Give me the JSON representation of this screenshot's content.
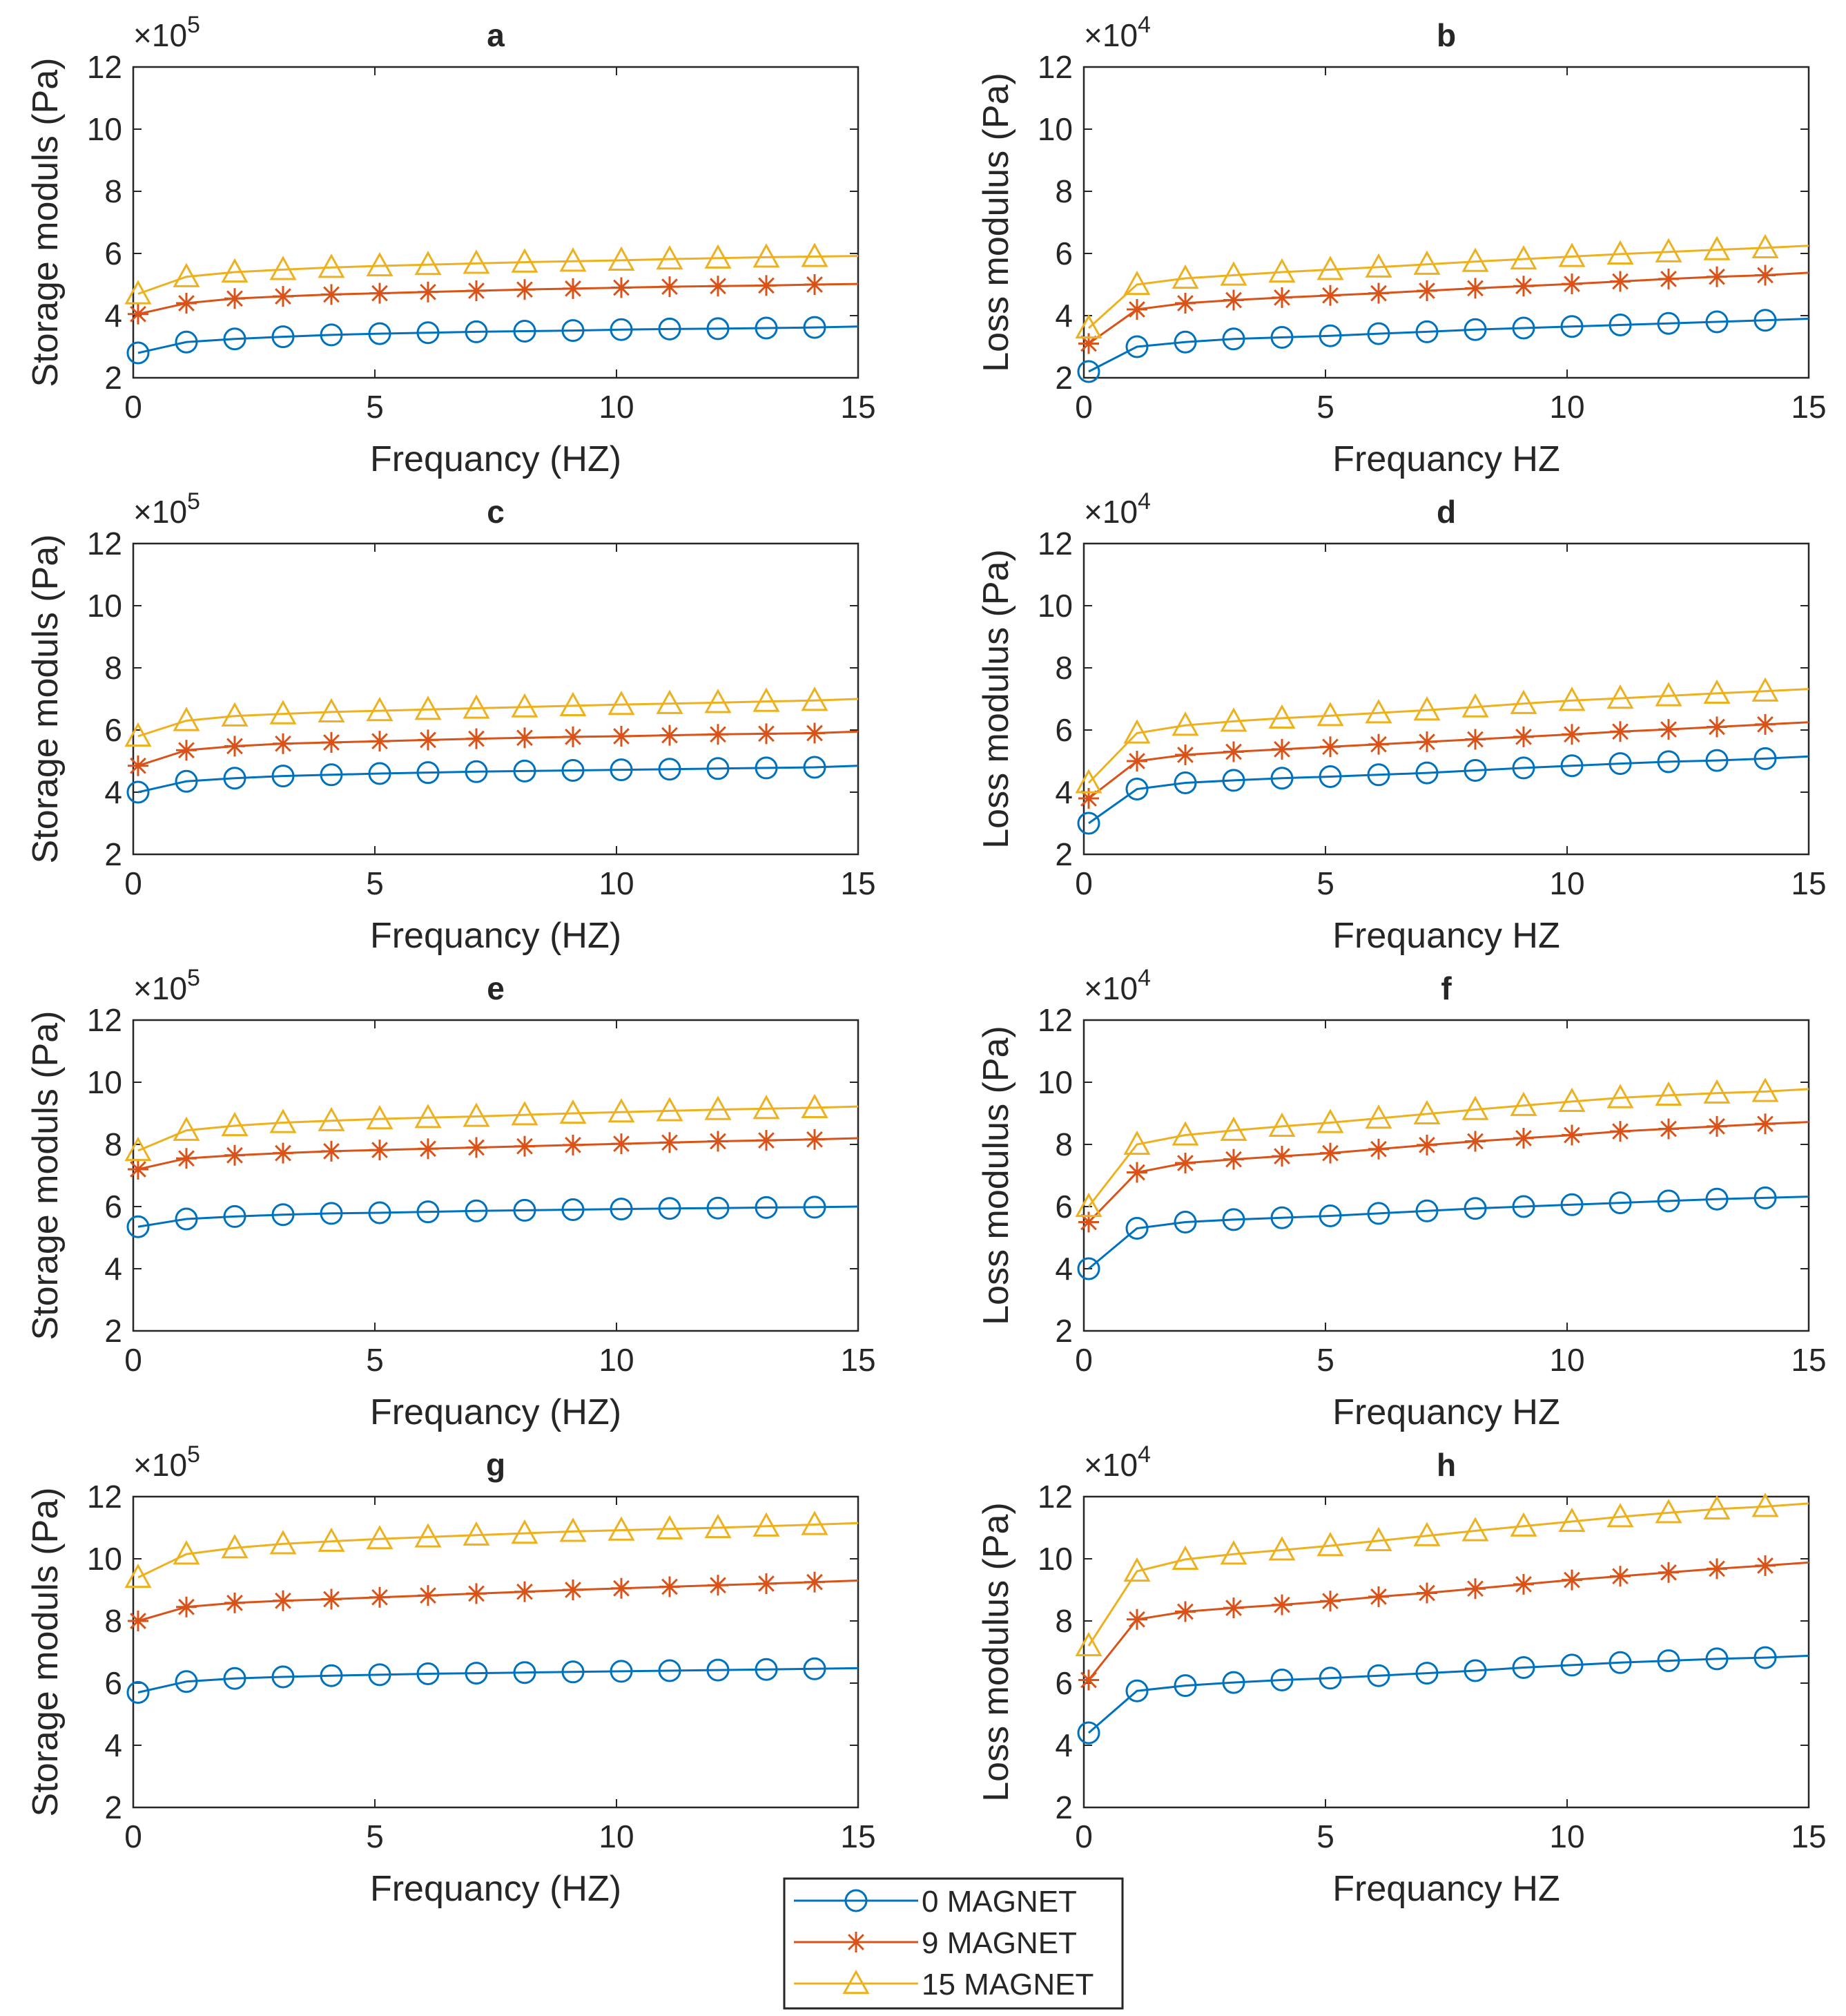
{
  "chart_data": {
    "type": "line",
    "panels": [
      {
        "id": "a",
        "title": "a",
        "xlabel": "Frequancy (HZ)",
        "ylabel": "Storage moduls (Pa)",
        "y_multiplier": "×10",
        "y_exponent": "5",
        "xlim": [
          0,
          15
        ],
        "ylim": [
          2,
          12
        ],
        "xticks": [
          "0",
          "5",
          "10",
          "15"
        ],
        "yticks": [
          "2",
          "4",
          "6",
          "8",
          "10",
          "12"
        ],
        "x": [
          0.1,
          1.1,
          2.1,
          3.1,
          4.1,
          5.1,
          6.1,
          7.1,
          8.1,
          9.1,
          10.1,
          11.1,
          12.1,
          13.1,
          14.1,
          15
        ],
        "series": [
          {
            "name": "0 MAGNET",
            "values": [
              2.8,
              3.15,
              3.25,
              3.32,
              3.38,
              3.42,
              3.45,
              3.48,
              3.5,
              3.52,
              3.55,
              3.57,
              3.58,
              3.6,
              3.62,
              3.65
            ]
          },
          {
            "name": "9 MAGNET",
            "values": [
              4.05,
              4.4,
              4.55,
              4.62,
              4.68,
              4.72,
              4.76,
              4.8,
              4.84,
              4.87,
              4.9,
              4.93,
              4.95,
              4.97,
              5.0,
              5.02
            ]
          },
          {
            "name": "15 MAGNET",
            "values": [
              4.7,
              5.25,
              5.4,
              5.48,
              5.55,
              5.6,
              5.64,
              5.68,
              5.72,
              5.75,
              5.78,
              5.82,
              5.85,
              5.88,
              5.9,
              5.92
            ]
          }
        ]
      },
      {
        "id": "b",
        "title": "b",
        "xlabel": "Frequancy HZ",
        "ylabel": "Loss modulus (Pa)",
        "y_multiplier": "×10",
        "y_exponent": "4",
        "xlim": [
          0,
          15
        ],
        "ylim": [
          2,
          12
        ],
        "xticks": [
          "0",
          "5",
          "10",
          "15"
        ],
        "yticks": [
          "2",
          "4",
          "6",
          "8",
          "10",
          "12"
        ],
        "x": [
          0.1,
          1.1,
          2.1,
          3.1,
          4.1,
          5.1,
          6.1,
          7.1,
          8.1,
          9.1,
          10.1,
          11.1,
          12.1,
          13.1,
          14.1,
          15
        ],
        "series": [
          {
            "name": "0 MAGNET",
            "values": [
              2.2,
              3.0,
              3.15,
              3.25,
              3.3,
              3.35,
              3.42,
              3.48,
              3.55,
              3.6,
              3.65,
              3.7,
              3.75,
              3.8,
              3.85,
              3.9
            ]
          },
          {
            "name": "9 MAGNET",
            "values": [
              3.1,
              4.2,
              4.4,
              4.5,
              4.58,
              4.65,
              4.72,
              4.8,
              4.88,
              4.95,
              5.02,
              5.1,
              5.18,
              5.25,
              5.3,
              5.38
            ]
          },
          {
            "name": "15 MAGNET",
            "values": [
              3.6,
              5.0,
              5.2,
              5.3,
              5.4,
              5.48,
              5.56,
              5.65,
              5.74,
              5.82,
              5.9,
              5.98,
              6.05,
              6.12,
              6.18,
              6.25
            ]
          }
        ]
      },
      {
        "id": "c",
        "title": "c",
        "xlabel": "Frequancy (HZ)",
        "ylabel": "Storage moduls (Pa)",
        "y_multiplier": "×10",
        "y_exponent": "5",
        "xlim": [
          0,
          15
        ],
        "ylim": [
          2,
          12
        ],
        "xticks": [
          "0",
          "5",
          "10",
          "15"
        ],
        "yticks": [
          "2",
          "4",
          "6",
          "8",
          "10",
          "12"
        ],
        "x": [
          0.1,
          1.1,
          2.1,
          3.1,
          4.1,
          5.1,
          6.1,
          7.1,
          8.1,
          9.1,
          10.1,
          11.1,
          12.1,
          13.1,
          14.1,
          15
        ],
        "series": [
          {
            "name": "0 MAGNET",
            "values": [
              4.0,
              4.35,
              4.45,
              4.52,
              4.56,
              4.6,
              4.63,
              4.66,
              4.68,
              4.7,
              4.72,
              4.74,
              4.76,
              4.78,
              4.8,
              4.85
            ]
          },
          {
            "name": "9 MAGNET",
            "values": [
              4.85,
              5.35,
              5.48,
              5.56,
              5.6,
              5.64,
              5.68,
              5.72,
              5.75,
              5.78,
              5.8,
              5.83,
              5.86,
              5.88,
              5.9,
              5.95
            ]
          },
          {
            "name": "15 MAGNET",
            "values": [
              5.8,
              6.3,
              6.45,
              6.52,
              6.58,
              6.62,
              6.66,
              6.7,
              6.74,
              6.78,
              6.82,
              6.85,
              6.88,
              6.92,
              6.95,
              7.0
            ]
          }
        ]
      },
      {
        "id": "d",
        "title": "d",
        "xlabel": "Frequancy HZ",
        "ylabel": "Loss modulus (Pa)",
        "y_multiplier": "×10",
        "y_exponent": "4",
        "xlim": [
          0,
          15
        ],
        "ylim": [
          2,
          12
        ],
        "xticks": [
          "0",
          "5",
          "10",
          "15"
        ],
        "yticks": [
          "2",
          "4",
          "6",
          "8",
          "10",
          "12"
        ],
        "x": [
          0.1,
          1.1,
          2.1,
          3.1,
          4.1,
          5.1,
          6.1,
          7.1,
          8.1,
          9.1,
          10.1,
          11.1,
          12.1,
          13.1,
          14.1,
          15
        ],
        "series": [
          {
            "name": "0 MAGNET",
            "values": [
              3.0,
              4.1,
              4.3,
              4.38,
              4.45,
              4.5,
              4.56,
              4.62,
              4.7,
              4.78,
              4.85,
              4.92,
              4.98,
              5.02,
              5.08,
              5.15
            ]
          },
          {
            "name": "9 MAGNET",
            "values": [
              3.8,
              5.0,
              5.2,
              5.3,
              5.38,
              5.46,
              5.54,
              5.62,
              5.7,
              5.78,
              5.86,
              5.95,
              6.02,
              6.1,
              6.18,
              6.25
            ]
          },
          {
            "name": "15 MAGNET",
            "values": [
              4.3,
              5.9,
              6.15,
              6.28,
              6.38,
              6.46,
              6.55,
              6.64,
              6.74,
              6.85,
              6.95,
              7.02,
              7.1,
              7.18,
              7.25,
              7.32
            ]
          }
        ]
      },
      {
        "id": "e",
        "title": "e",
        "xlabel": "Frequancy (HZ)",
        "ylabel": "Storage moduls (Pa)",
        "y_multiplier": "×10",
        "y_exponent": "5",
        "xlim": [
          0,
          15
        ],
        "ylim": [
          2,
          12
        ],
        "xticks": [
          "0",
          "5",
          "10",
          "15"
        ],
        "yticks": [
          "2",
          "4",
          "6",
          "8",
          "10",
          "12"
        ],
        "x": [
          0.1,
          1.1,
          2.1,
          3.1,
          4.1,
          5.1,
          6.1,
          7.1,
          8.1,
          9.1,
          10.1,
          11.1,
          12.1,
          13.1,
          14.1,
          15
        ],
        "series": [
          {
            "name": "0 MAGNET",
            "values": [
              5.35,
              5.6,
              5.68,
              5.74,
              5.78,
              5.8,
              5.83,
              5.86,
              5.88,
              5.9,
              5.92,
              5.94,
              5.95,
              5.97,
              5.98,
              6.0
            ]
          },
          {
            "name": "9 MAGNET",
            "values": [
              7.2,
              7.55,
              7.65,
              7.72,
              7.78,
              7.82,
              7.86,
              7.9,
              7.94,
              7.98,
              8.02,
              8.06,
              8.1,
              8.13,
              8.16,
              8.2
            ]
          },
          {
            "name": "15 MAGNET",
            "values": [
              7.8,
              8.45,
              8.6,
              8.7,
              8.76,
              8.82,
              8.86,
              8.9,
              8.95,
              9.0,
              9.04,
              9.08,
              9.12,
              9.15,
              9.18,
              9.22
            ]
          }
        ]
      },
      {
        "id": "f",
        "title": "f",
        "xlabel": "Frequancy HZ",
        "ylabel": "Loss modulus (Pa)",
        "y_multiplier": "×10",
        "y_exponent": "4",
        "xlim": [
          0,
          15
        ],
        "ylim": [
          2,
          12
        ],
        "xticks": [
          "0",
          "5",
          "10",
          "15"
        ],
        "yticks": [
          "2",
          "4",
          "6",
          "8",
          "10",
          "12"
        ],
        "x": [
          0.1,
          1.1,
          2.1,
          3.1,
          4.1,
          5.1,
          6.1,
          7.1,
          8.1,
          9.1,
          10.1,
          11.1,
          12.1,
          13.1,
          14.1,
          15
        ],
        "series": [
          {
            "name": "0 MAGNET",
            "values": [
              4.0,
              5.3,
              5.5,
              5.58,
              5.64,
              5.7,
              5.78,
              5.86,
              5.94,
              6.0,
              6.06,
              6.12,
              6.18,
              6.24,
              6.28,
              6.32
            ]
          },
          {
            "name": "9 MAGNET",
            "values": [
              5.5,
              7.1,
              7.4,
              7.52,
              7.62,
              7.72,
              7.85,
              7.98,
              8.1,
              8.2,
              8.3,
              8.42,
              8.5,
              8.58,
              8.66,
              8.72
            ]
          },
          {
            "name": "15 MAGNET",
            "values": [
              6.0,
              8.0,
              8.3,
              8.45,
              8.58,
              8.7,
              8.84,
              8.98,
              9.12,
              9.25,
              9.38,
              9.5,
              9.58,
              9.65,
              9.7,
              9.78
            ]
          }
        ]
      },
      {
        "id": "g",
        "title": "g",
        "xlabel": "Frequancy (HZ)",
        "ylabel": "Storage moduls (Pa)",
        "y_multiplier": "×10",
        "y_exponent": "5",
        "xlim": [
          0,
          15
        ],
        "ylim": [
          2,
          12
        ],
        "xticks": [
          "0",
          "5",
          "10",
          "15"
        ],
        "yticks": [
          "2",
          "4",
          "6",
          "8",
          "10",
          "12"
        ],
        "x": [
          0.1,
          1.1,
          2.1,
          3.1,
          4.1,
          5.1,
          6.1,
          7.1,
          8.1,
          9.1,
          10.1,
          11.1,
          12.1,
          13.1,
          14.1,
          15
        ],
        "series": [
          {
            "name": "0 MAGNET",
            "values": [
              5.7,
              6.05,
              6.15,
              6.2,
              6.24,
              6.27,
              6.3,
              6.32,
              6.34,
              6.36,
              6.38,
              6.4,
              6.42,
              6.44,
              6.46,
              6.48
            ]
          },
          {
            "name": "9 MAGNET",
            "values": [
              8.0,
              8.45,
              8.58,
              8.65,
              8.7,
              8.76,
              8.82,
              8.88,
              8.94,
              9.0,
              9.05,
              9.1,
              9.15,
              9.2,
              9.25,
              9.3
            ]
          },
          {
            "name": "15 MAGNET",
            "values": [
              9.4,
              10.15,
              10.35,
              10.48,
              10.56,
              10.64,
              10.7,
              10.76,
              10.82,
              10.88,
              10.92,
              10.96,
              11.0,
              11.05,
              11.1,
              11.15
            ]
          }
        ]
      },
      {
        "id": "h",
        "title": "h",
        "xlabel": "Frequancy HZ",
        "ylabel": "Loss modulus (Pa)",
        "y_multiplier": "×10",
        "y_exponent": "4",
        "xlim": [
          0,
          15
        ],
        "ylim": [
          2,
          12
        ],
        "xticks": [
          "0",
          "5",
          "10",
          "15"
        ],
        "yticks": [
          "2",
          "4",
          "6",
          "8",
          "10",
          "12"
        ],
        "x": [
          0.1,
          1.1,
          2.1,
          3.1,
          4.1,
          5.1,
          6.1,
          7.1,
          8.1,
          9.1,
          10.1,
          11.1,
          12.1,
          13.1,
          14.1,
          15
        ],
        "series": [
          {
            "name": "0 MAGNET",
            "values": [
              4.4,
              5.75,
              5.92,
              6.02,
              6.1,
              6.16,
              6.24,
              6.32,
              6.4,
              6.5,
              6.58,
              6.66,
              6.72,
              6.78,
              6.82,
              6.88
            ]
          },
          {
            "name": "9 MAGNET",
            "values": [
              6.1,
              8.05,
              8.3,
              8.42,
              8.52,
              8.64,
              8.78,
              8.9,
              9.04,
              9.18,
              9.32,
              9.44,
              9.56,
              9.68,
              9.78,
              9.88
            ]
          },
          {
            "name": "15 MAGNET",
            "values": [
              7.2,
              9.6,
              9.98,
              10.15,
              10.28,
              10.42,
              10.58,
              10.74,
              10.9,
              11.05,
              11.2,
              11.35,
              11.48,
              11.6,
              11.68,
              11.78
            ]
          }
        ]
      }
    ],
    "legend": [
      {
        "name": "0 MAGNET",
        "marker": "circle"
      },
      {
        "name": "9 MAGNET",
        "marker": "asterisk"
      },
      {
        "name": "15 MAGNET",
        "marker": "triangle"
      }
    ],
    "legend_position": "bottom-center"
  },
  "colors": {
    "series": [
      "#0072BD",
      "#D95319",
      "#EDB120"
    ],
    "axes": "#262626",
    "background": "#ffffff"
  }
}
